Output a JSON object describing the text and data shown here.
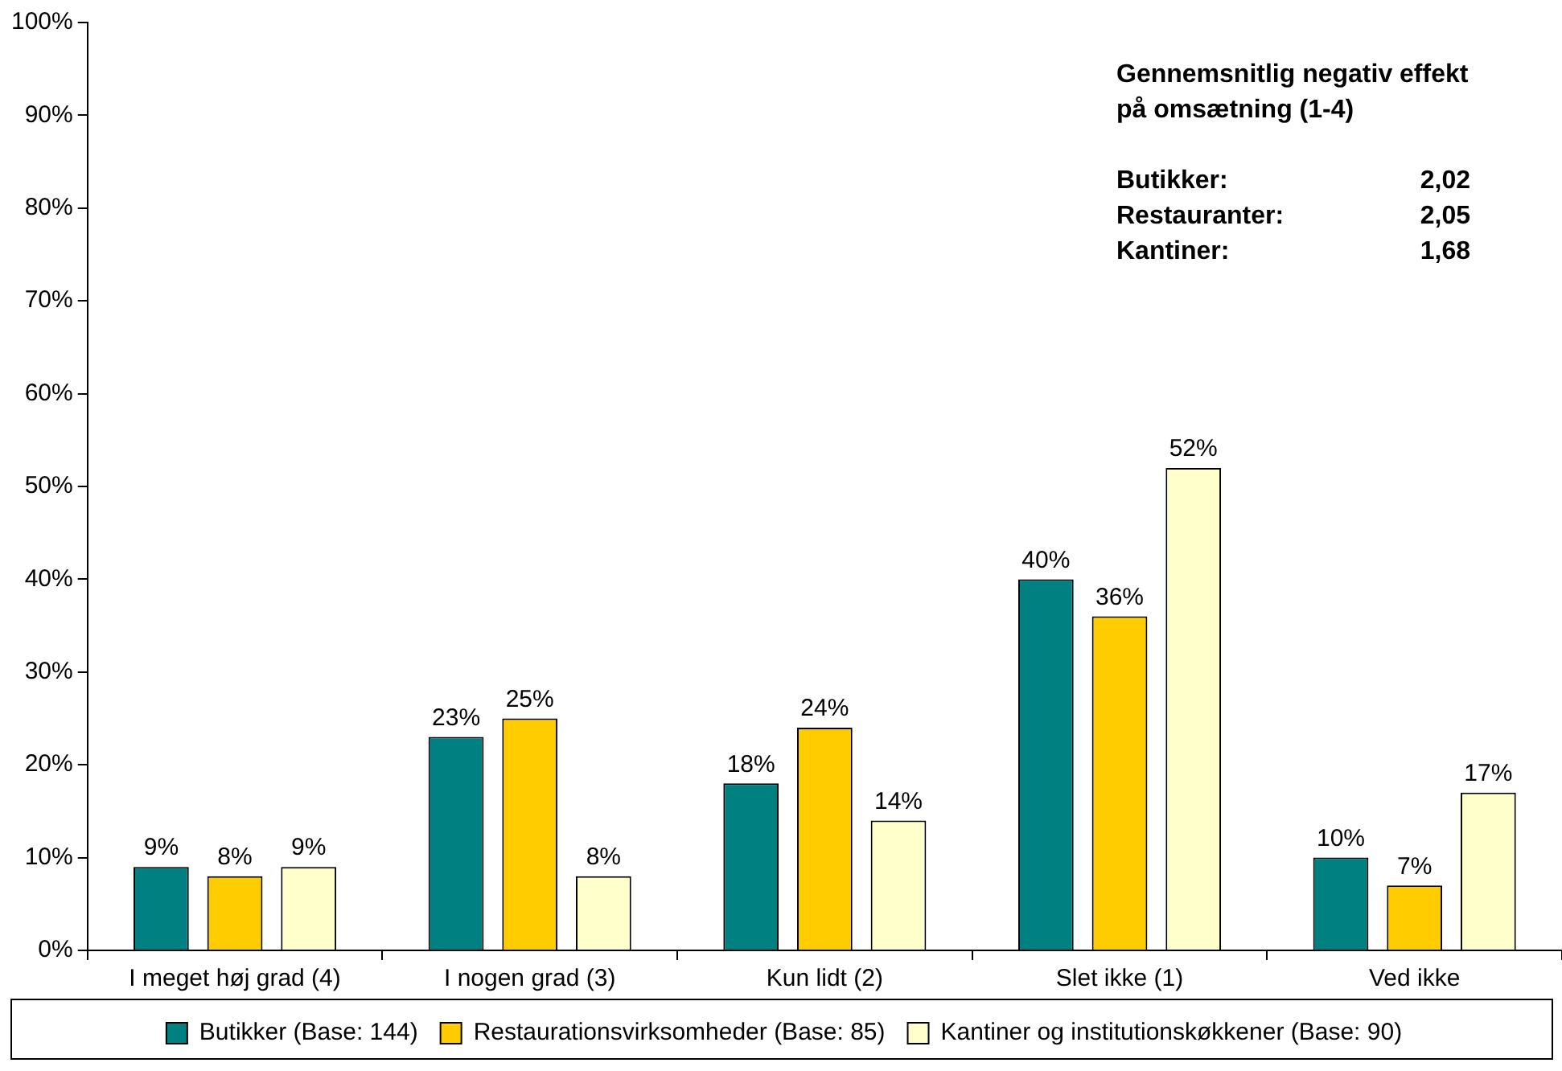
{
  "chart_data": {
    "type": "bar",
    "categories": [
      "I meget høj grad (4)",
      "I nogen grad (3)",
      "Kun lidt (2)",
      "Slet ikke (1)",
      "Ved ikke"
    ],
    "series": [
      {
        "name": "Butikker (Base: 144)",
        "color": "#008080",
        "values": [
          9,
          23,
          18,
          40,
          10
        ],
        "value_labels": [
          "9%",
          "23%",
          "18%",
          "40%",
          "10%"
        ]
      },
      {
        "name": "Restaurationsvirksomheder (Base: 85)",
        "color": "#ffcc00",
        "values": [
          8,
          25,
          24,
          36,
          7
        ],
        "value_labels": [
          "8%",
          "25%",
          "24%",
          "36%",
          "7%"
        ]
      },
      {
        "name": "Kantiner og institutionskøkkener (Base: 90)",
        "color": "#ffffcc",
        "values": [
          9,
          8,
          14,
          52,
          17
        ],
        "value_labels": [
          "9%",
          "8%",
          "14%",
          "52%",
          "17%"
        ]
      }
    ],
    "ylim": [
      0,
      100
    ],
    "yticks": [
      {
        "value": 0,
        "label": "0%"
      },
      {
        "value": 10,
        "label": "10%"
      },
      {
        "value": 20,
        "label": "20%"
      },
      {
        "value": 30,
        "label": "30%"
      },
      {
        "value": 40,
        "label": "40%"
      },
      {
        "value": 50,
        "label": "50%"
      },
      {
        "value": 60,
        "label": "60%"
      },
      {
        "value": 70,
        "label": "70%"
      },
      {
        "value": 80,
        "label": "80%"
      },
      {
        "value": 90,
        "label": "90%"
      },
      {
        "value": 100,
        "label": "100%"
      }
    ],
    "grid": false,
    "legend": "bottom",
    "annotations": [
      "Gennemsnitlig negativ effekt på omsætning (1-4)",
      "Butikker: 2,02",
      "Restauranter: 2,05",
      "Kantiner: 1,68"
    ]
  }
}
